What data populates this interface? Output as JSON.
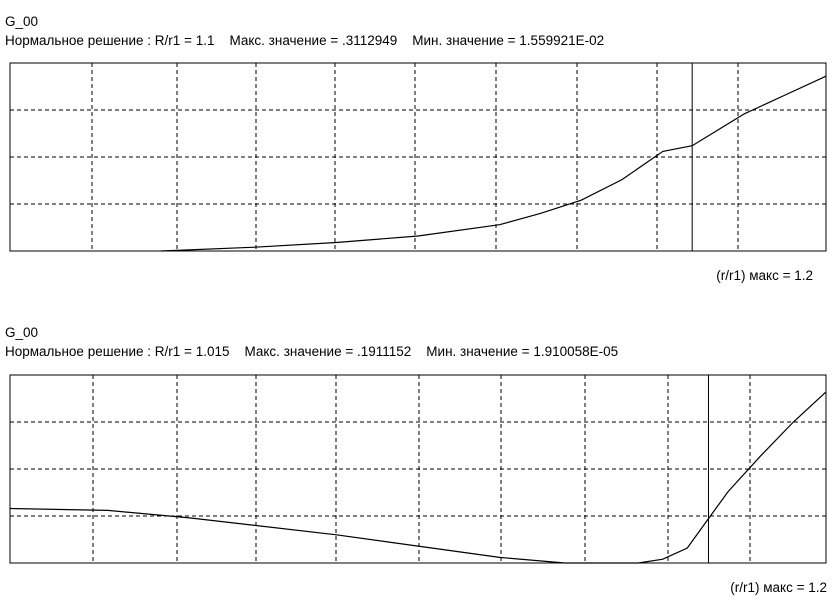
{
  "chart_data": [
    {
      "type": "line",
      "title": "G_00",
      "subtitle": "Нормальное решение : R/r1 = 1.1    Макс. значение = .3112949    Мин. значение = 1.559921E-02",
      "footer": "(r/r1) макс = 1.2",
      "grid": true,
      "xlim": [
        0,
        1
      ],
      "ylim": [
        0,
        1
      ],
      "marker_x": 0.836,
      "series": [
        {
          "x": [
            0.185,
            0.3,
            0.4,
            0.5,
            0.6,
            0.65,
            0.7,
            0.75,
            0.8,
            0.836,
            0.9,
            0.95,
            1.0
          ],
          "values": [
            0.0,
            0.02,
            0.045,
            0.08,
            0.14,
            0.2,
            0.27,
            0.38,
            0.53,
            0.56,
            0.73,
            0.83,
            0.93
          ]
        }
      ]
    },
    {
      "type": "line",
      "title": "G_00",
      "subtitle": "Нормальное решение : R/r1 = 1.015    Макс. значение = .1911152    Мин. значение = 1.910058E-05",
      "footer": "(r/r1) макс = 1.2",
      "grid": true,
      "xlim": [
        0,
        1
      ],
      "ylim": [
        0,
        1
      ],
      "marker_x": 0.856,
      "series": [
        {
          "x": [
            0.0,
            0.12,
            0.22,
            0.3,
            0.4,
            0.5,
            0.6,
            0.68,
            0.77,
            0.8,
            0.83,
            0.85,
            0.88,
            0.92,
            0.96,
            1.0
          ],
          "values": [
            0.29,
            0.28,
            0.24,
            0.2,
            0.15,
            0.09,
            0.03,
            0.0,
            0.0,
            0.02,
            0.08,
            0.2,
            0.38,
            0.57,
            0.75,
            0.91
          ]
        }
      ]
    }
  ]
}
